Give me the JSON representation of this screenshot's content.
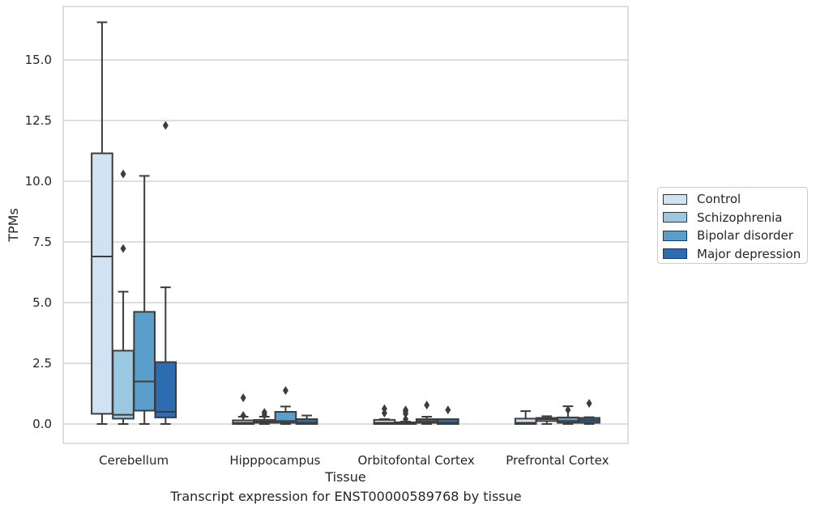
{
  "caption": "Transcript expression for ENST00000589768 by tissue",
  "chart_data": {
    "type": "boxplot",
    "xlabel": "Tissue",
    "ylabel": "TPMs",
    "ylim": [
      -0.8,
      17.2
    ],
    "yticks": [
      "0.0",
      "2.5",
      "5.0",
      "7.5",
      "10.0",
      "12.5",
      "15.0"
    ],
    "grid": true,
    "legend_position": "right",
    "categories": [
      "Cerebellum",
      "Hipppocampus",
      "Orbitofontal Cortex",
      "Prefrontal Cortex"
    ],
    "series": [
      {
        "name": "Control",
        "color": "#d1e2f2",
        "boxes": [
          {
            "whislo": 0.0,
            "q1": 0.42,
            "med": 6.9,
            "q3": 11.15,
            "whishi": 16.55,
            "fliers": []
          },
          {
            "whislo": 0.0,
            "q1": 0.0,
            "med": 0.05,
            "q3": 0.15,
            "whishi": 0.3,
            "fliers": [
              0.35,
              1.08
            ]
          },
          {
            "whislo": 0.0,
            "q1": 0.0,
            "med": 0.05,
            "q3": 0.17,
            "whishi": 0.2,
            "fliers": [
              0.45,
              0.63
            ]
          },
          {
            "whislo": 0.0,
            "q1": 0.0,
            "med": 0.05,
            "q3": 0.22,
            "whishi": 0.53,
            "fliers": []
          }
        ]
      },
      {
        "name": "Schizophrenia",
        "color": "#9ac8e0",
        "boxes": [
          {
            "whislo": 0.0,
            "q1": 0.22,
            "med": 0.38,
            "q3": 3.02,
            "whishi": 5.45,
            "fliers": [
              7.23,
              10.3
            ]
          },
          {
            "whislo": 0.0,
            "q1": 0.05,
            "med": 0.1,
            "q3": 0.17,
            "whishi": 0.3,
            "fliers": [
              0.38,
              0.48
            ]
          },
          {
            "whislo": 0.0,
            "q1": 0.0,
            "med": 0.02,
            "q3": 0.07,
            "whishi": 0.1,
            "fliers": [
              0.2,
              0.42,
              0.52,
              0.58
            ]
          },
          {
            "whislo": 0.0,
            "q1": 0.12,
            "med": 0.2,
            "q3": 0.25,
            "whishi": 0.32,
            "fliers": []
          }
        ]
      },
      {
        "name": "Bipolar disorder",
        "color": "#5a9ecc",
        "boxes": [
          {
            "whislo": 0.0,
            "q1": 0.55,
            "med": 1.75,
            "q3": 4.62,
            "whishi": 10.22,
            "fliers": []
          },
          {
            "whislo": 0.0,
            "q1": 0.05,
            "med": 0.12,
            "q3": 0.5,
            "whishi": 0.72,
            "fliers": [
              1.38
            ]
          },
          {
            "whislo": 0.0,
            "q1": 0.05,
            "med": 0.12,
            "q3": 0.2,
            "whishi": 0.3,
            "fliers": [
              0.78
            ]
          },
          {
            "whislo": 0.0,
            "q1": 0.05,
            "med": 0.12,
            "q3": 0.27,
            "whishi": 0.73,
            "fliers": [
              0.58
            ]
          }
        ]
      },
      {
        "name": "Major depression",
        "color": "#2c6cb0",
        "boxes": [
          {
            "whislo": 0.0,
            "q1": 0.27,
            "med": 0.5,
            "q3": 2.55,
            "whishi": 5.63,
            "fliers": [
              12.3
            ]
          },
          {
            "whislo": 0.0,
            "q1": 0.0,
            "med": 0.05,
            "q3": 0.2,
            "whishi": 0.35,
            "fliers": []
          },
          {
            "whislo": 0.0,
            "q1": 0.0,
            "med": 0.05,
            "q3": 0.2,
            "whishi": 0.2,
            "fliers": [
              0.58
            ]
          },
          {
            "whislo": 0.0,
            "q1": 0.05,
            "med": 0.15,
            "q3": 0.25,
            "whishi": 0.28,
            "fliers": [
              0.85
            ]
          }
        ]
      }
    ]
  }
}
